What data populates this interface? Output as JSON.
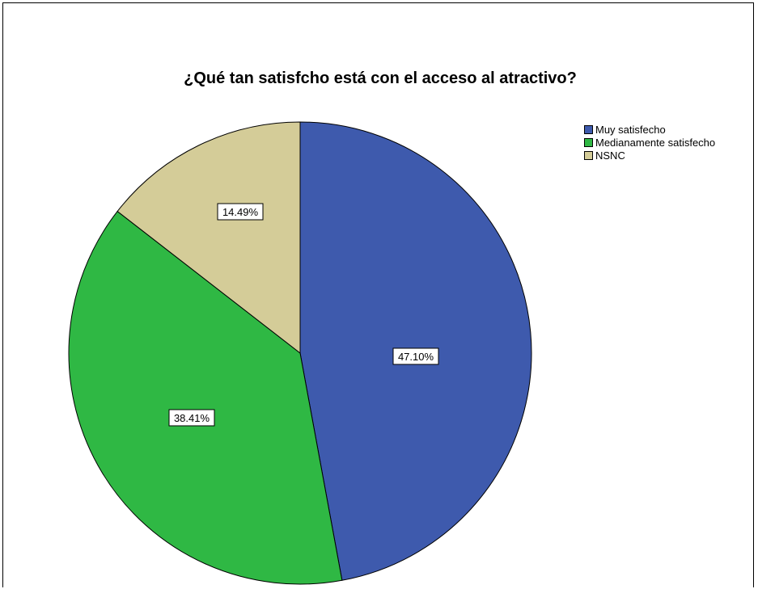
{
  "chart_data": {
    "type": "pie",
    "title": "¿Qué tan satisfcho está con el acceso al atractivo?",
    "slices": [
      {
        "name": "Muy satisfecho",
        "value": 47.1,
        "label": "47.10%",
        "color": "#3e5aad"
      },
      {
        "name": "Medianamente satisfecho",
        "value": 38.41,
        "label": "38.41%",
        "color": "#2fb844"
      },
      {
        "name": "NSNC",
        "value": 14.49,
        "label": "14.49%",
        "color": "#d4cc98"
      }
    ],
    "legend": "top-right"
  }
}
